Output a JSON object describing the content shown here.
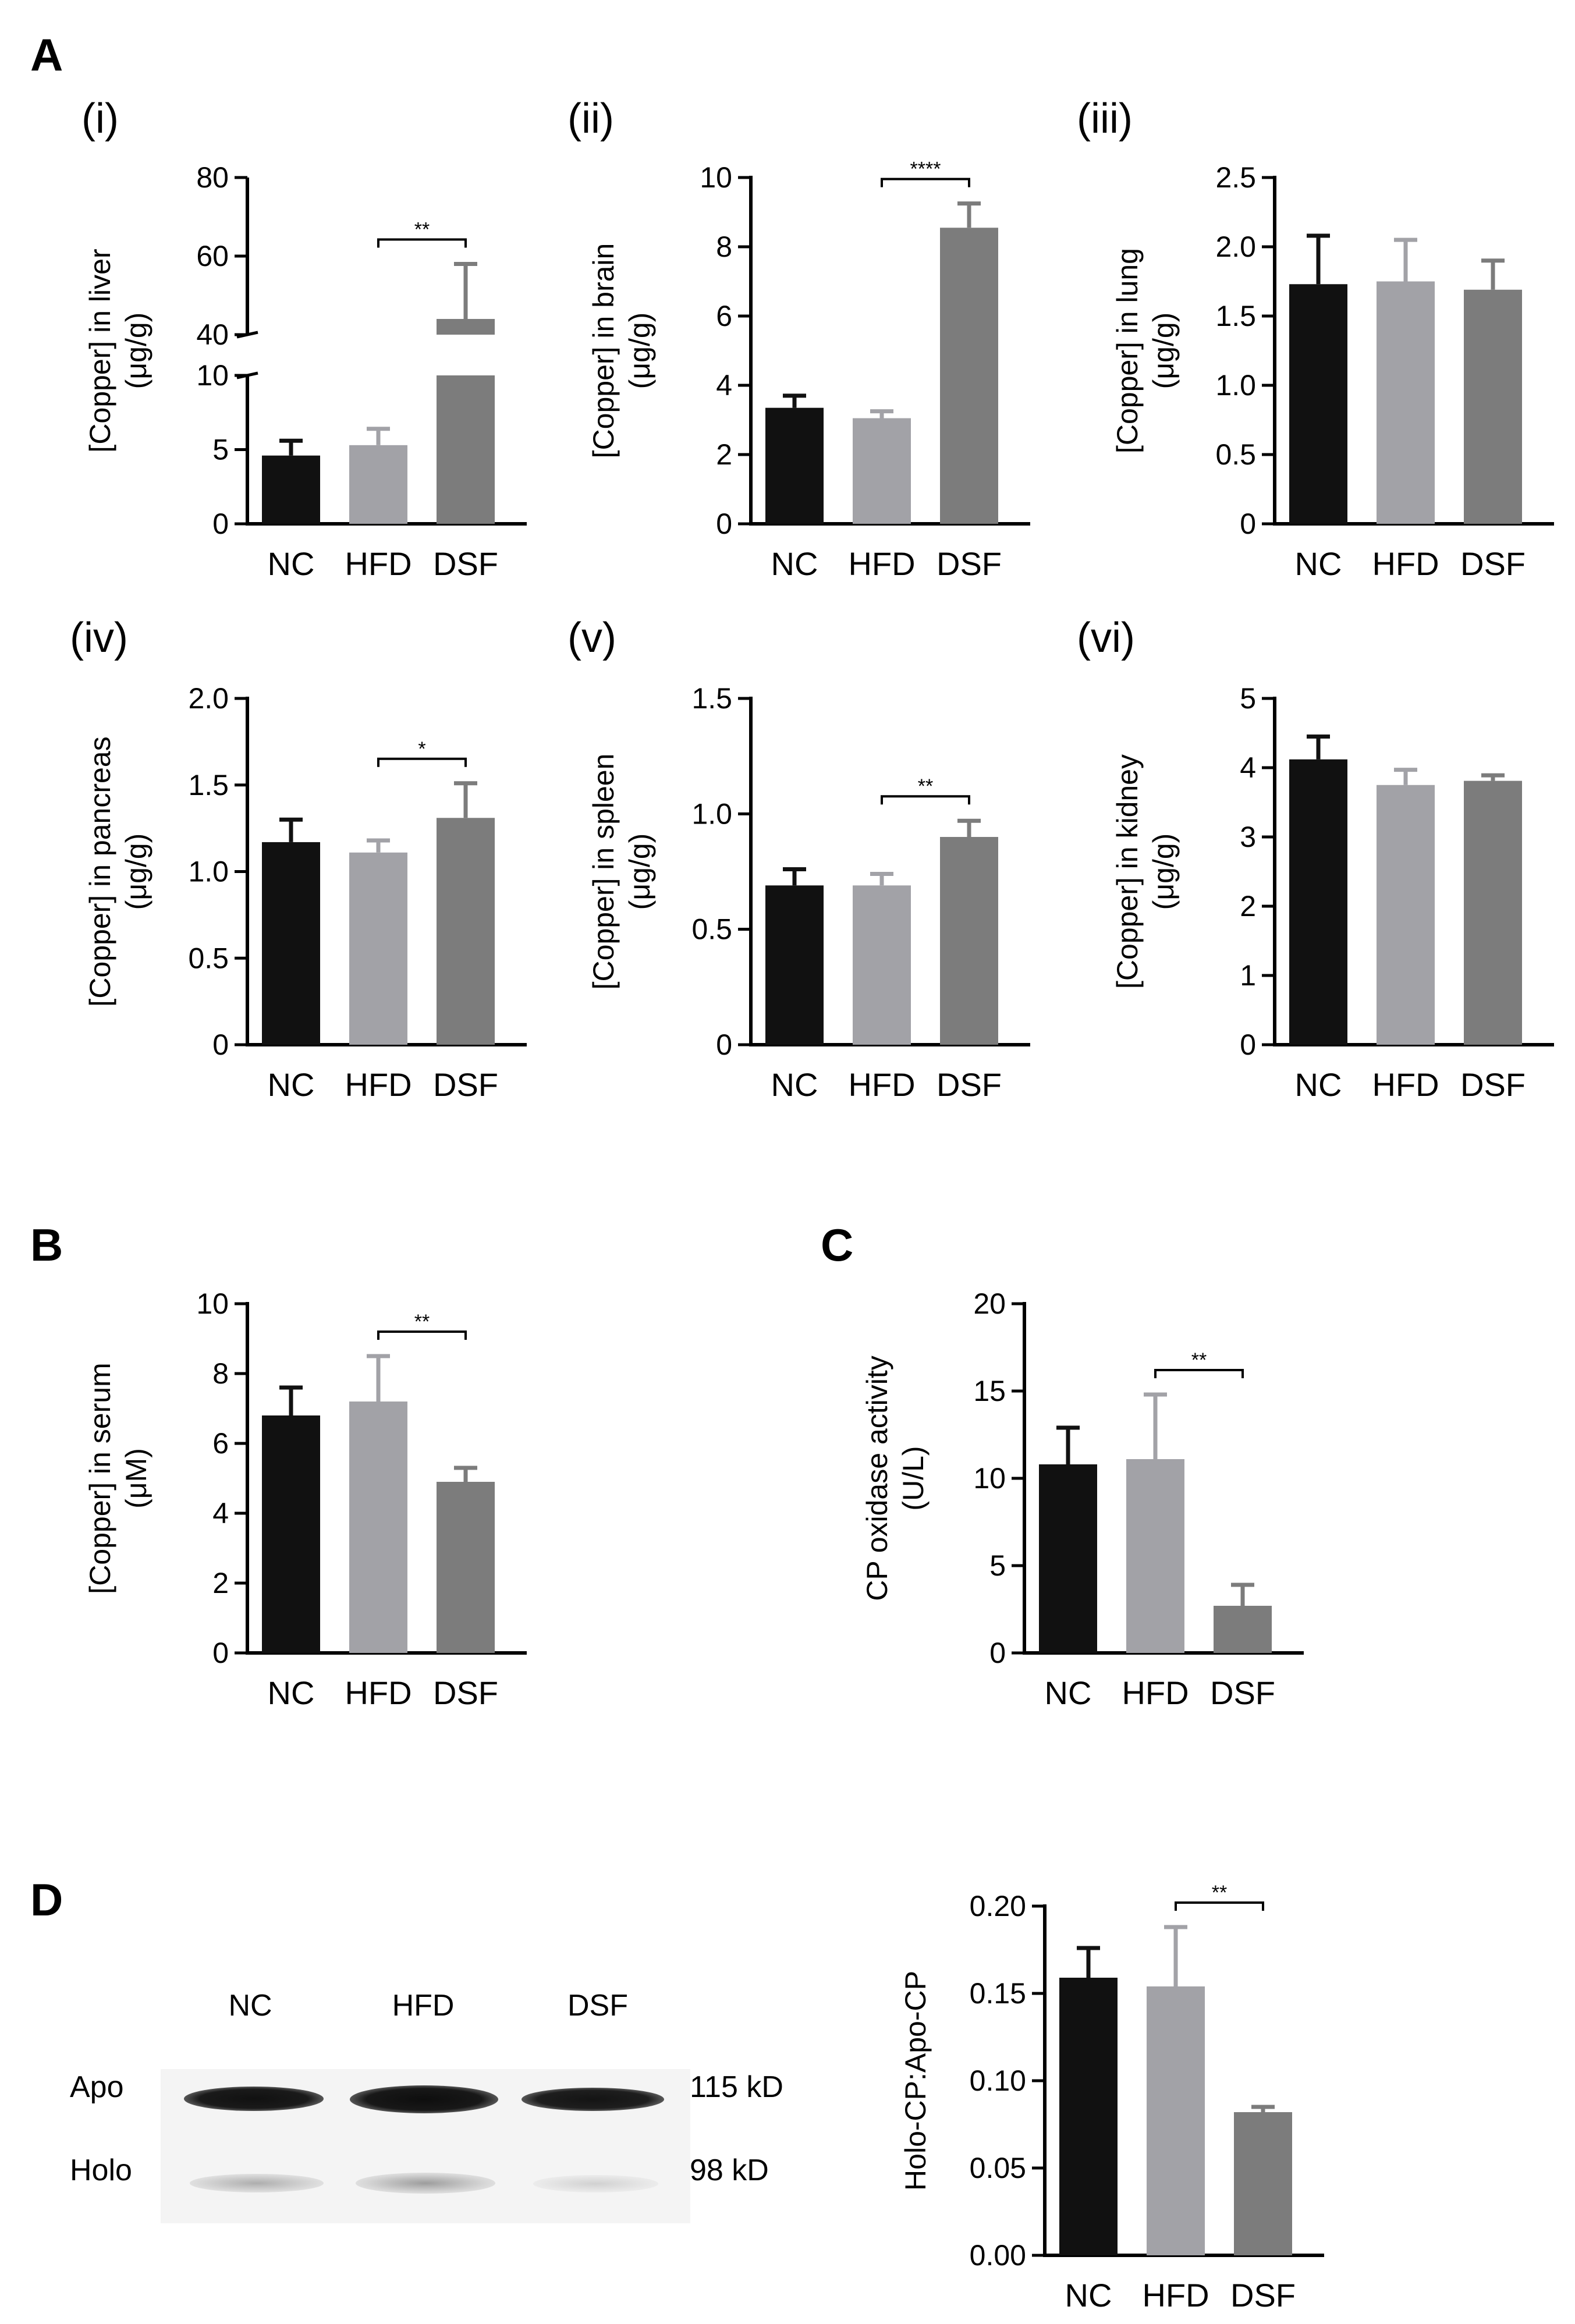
{
  "panel_labels": {
    "A": "A",
    "B": "B",
    "C": "C",
    "D": "D"
  },
  "subpanel_labels": [
    "(i)",
    "(ii)",
    "(iii)",
    "(iv)",
    "(v)",
    "(vi)"
  ],
  "colors": {
    "NC": "#111111",
    "HFD": "#a2a2a7",
    "DSF": "#7c7c7c"
  },
  "blot": {
    "lanes": [
      "NC",
      "HFD",
      "DSF"
    ],
    "rows": [
      "Apo",
      "Holo"
    ],
    "markers": [
      "115 kD",
      "98 kD"
    ]
  },
  "chart_data": [
    {
      "id": "liver",
      "type": "bar",
      "panel": "A(i)",
      "categories": [
        "NC",
        "HFD",
        "DSF"
      ],
      "values": [
        4.6,
        5.3,
        44
      ],
      "errors": [
        1.0,
        1.1,
        14
      ],
      "ylabel": [
        "[Copper] in liver",
        "(μg/g)"
      ],
      "ylim": [
        0,
        80
      ],
      "axis_break": {
        "lower_max": 10,
        "upper_min": 40
      },
      "yticks_lower": [
        "0",
        "5",
        "10"
      ],
      "yticks_upper": [
        "40",
        "60",
        "80"
      ],
      "significance": {
        "from": "HFD",
        "to": "DSF",
        "label": "**"
      }
    },
    {
      "id": "brain",
      "type": "bar",
      "panel": "A(ii)",
      "categories": [
        "NC",
        "HFD",
        "DSF"
      ],
      "values": [
        3.35,
        3.05,
        8.55
      ],
      "errors": [
        0.35,
        0.2,
        0.7
      ],
      "ylabel": [
        "[Copper] in brain",
        "(μg/g)"
      ],
      "ylim": [
        0,
        10
      ],
      "yticks": [
        "0",
        "2",
        "4",
        "6",
        "8",
        "10"
      ],
      "significance": {
        "from": "HFD",
        "to": "DSF",
        "label": "****"
      }
    },
    {
      "id": "lung",
      "type": "bar",
      "panel": "A(iii)",
      "categories": [
        "NC",
        "HFD",
        "DSF"
      ],
      "values": [
        1.73,
        1.75,
        1.69
      ],
      "errors": [
        0.35,
        0.3,
        0.21
      ],
      "ylabel": [
        "[Copper] in lung",
        "(μg/g)"
      ],
      "ylim": [
        0,
        2.5
      ],
      "yticks": [
        "0",
        "0.5",
        "1.0",
        "1.5",
        "2.0",
        "2.5"
      ]
    },
    {
      "id": "pancreas",
      "type": "bar",
      "panel": "A(iv)",
      "categories": [
        "NC",
        "HFD",
        "DSF"
      ],
      "values": [
        1.17,
        1.11,
        1.31
      ],
      "errors": [
        0.13,
        0.07,
        0.2
      ],
      "ylabel": [
        "[Copper] in pancreas",
        "(μg/g)"
      ],
      "ylim": [
        0,
        2.0
      ],
      "yticks": [
        "0",
        "0.5",
        "1.0",
        "1.5",
        "2.0"
      ],
      "significance": {
        "from": "HFD",
        "to": "DSF",
        "label": "*"
      }
    },
    {
      "id": "spleen",
      "type": "bar",
      "panel": "A(v)",
      "categories": [
        "NC",
        "HFD",
        "DSF"
      ],
      "values": [
        0.69,
        0.69,
        0.9
      ],
      "errors": [
        0.07,
        0.05,
        0.07
      ],
      "ylabel": [
        "[Copper] in spleen",
        "(μg/g)"
      ],
      "ylim": [
        0,
        1.5
      ],
      "yticks": [
        "0",
        "0.5",
        "1.0",
        "1.5"
      ],
      "significance": {
        "from": "HFD",
        "to": "DSF",
        "label": "**"
      }
    },
    {
      "id": "kidney",
      "type": "bar",
      "panel": "A(vi)",
      "categories": [
        "NC",
        "HFD",
        "DSF"
      ],
      "values": [
        4.12,
        3.75,
        3.81
      ],
      "errors": [
        0.33,
        0.22,
        0.08
      ],
      "ylabel": [
        "[Copper] in kidney",
        "(μg/g)"
      ],
      "ylim": [
        0,
        5
      ],
      "yticks": [
        "0",
        "1",
        "2",
        "3",
        "4",
        "5"
      ]
    },
    {
      "id": "serum",
      "type": "bar",
      "panel": "B",
      "categories": [
        "NC",
        "HFD",
        "DSF"
      ],
      "values": [
        6.8,
        7.2,
        4.9
      ],
      "errors": [
        0.8,
        1.3,
        0.4
      ],
      "ylabel": [
        "[Copper] in serum",
        "(μM)"
      ],
      "ylim": [
        0,
        10
      ],
      "yticks": [
        "0",
        "2",
        "4",
        "6",
        "8",
        "10"
      ],
      "significance": {
        "from": "HFD",
        "to": "DSF",
        "label": "**"
      }
    },
    {
      "id": "cp-oxidase",
      "type": "bar",
      "panel": "C",
      "categories": [
        "NC",
        "HFD",
        "DSF"
      ],
      "values": [
        10.8,
        11.1,
        2.7
      ],
      "errors": [
        2.1,
        3.7,
        1.2
      ],
      "ylabel": [
        "CP oxidase activity",
        "(U/L)"
      ],
      "ylim": [
        0,
        20
      ],
      "yticks": [
        "0",
        "5",
        "10",
        "15",
        "20"
      ],
      "significance": {
        "from": "HFD",
        "to": "DSF",
        "label": "**"
      }
    },
    {
      "id": "holo-apo",
      "type": "bar",
      "panel": "D",
      "categories": [
        "NC",
        "HFD",
        "DSF"
      ],
      "values": [
        0.159,
        0.154,
        0.082
      ],
      "errors": [
        0.017,
        0.034,
        0.003
      ],
      "ylabel": [
        "Holo-CP:Apo-CP"
      ],
      "ylim": [
        0,
        0.2
      ],
      "yticks": [
        "0.00",
        "0.05",
        "0.10",
        "0.15",
        "0.20"
      ],
      "significance": {
        "from": "HFD",
        "to": "DSF",
        "label": "**"
      }
    }
  ]
}
